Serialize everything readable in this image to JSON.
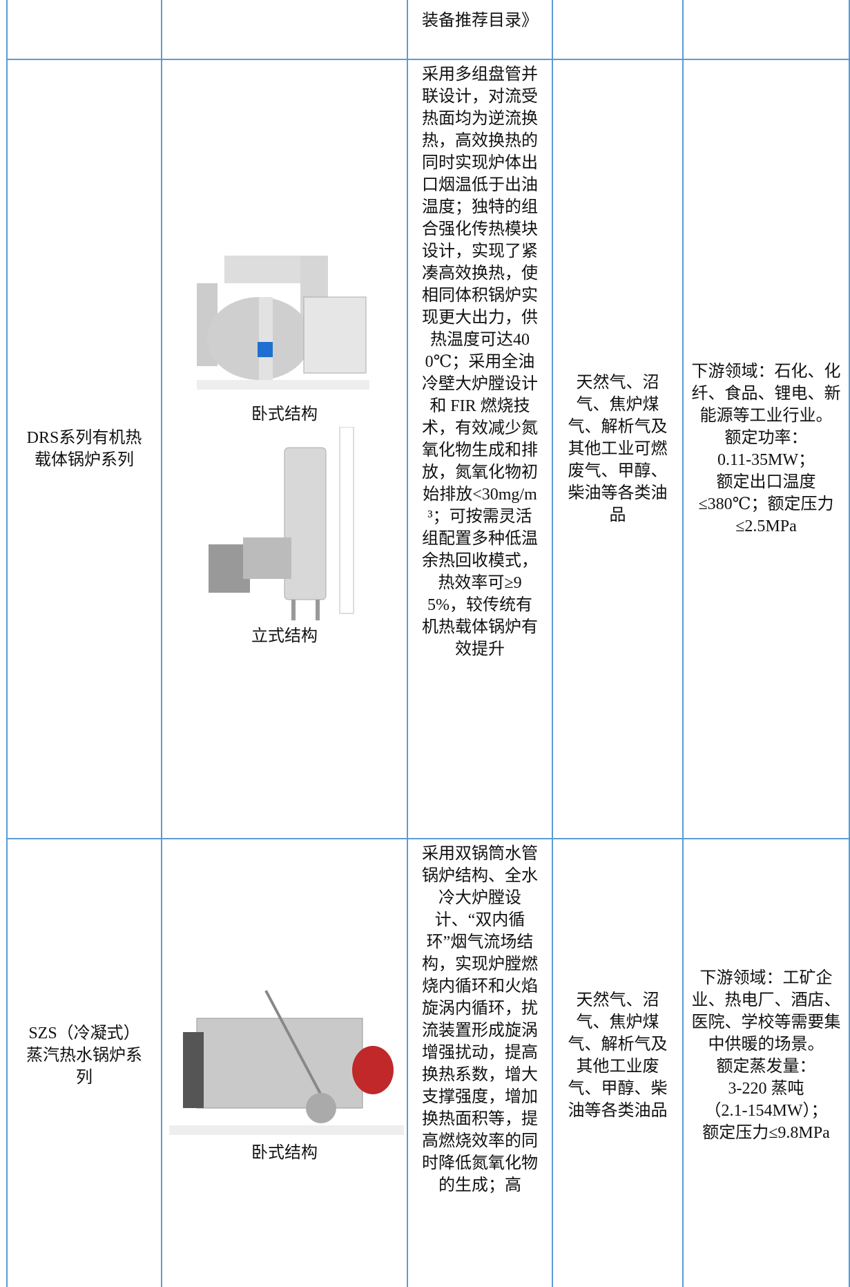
{
  "table": {
    "rows": [
      {
        "description": "装备推荐目录》"
      },
      {
        "name": "DRS系列有机热载体锅炉系列",
        "captions": [
          "卧式结构",
          "立式结构"
        ],
        "description": "采用多组盘管并联设计，对流受热面均为逆流换热，高效换热的同时实现炉体出口烟温低于出油温度；独特的组合强化传热模块设计，实现了紧凑高效换热，使相同体积锅炉实现更大出力，供热温度可达400℃；采用全油冷壁大炉膛设计和 FIR 燃烧技术，有效减少氮氧化物生成和排放，氮氧化物初始排放<30mg/m³；可按需灵活组配置多种低温余热回收模式，热效率可≥95%，较传统有机热载体锅炉有效提升",
        "fuel": "天然气、沼气、焦炉煤气、解析气及其他工业可燃废气、甲醇、柴油等各类油品",
        "application": [
          "下游领域：石化、化纤、食品、锂电、新能源等工业行业。",
          "额定功率：",
          "0.11-35MW；",
          "额定出口温度≤380℃；额定压力≤2.5MPa"
        ]
      },
      {
        "name": "SZS（冷凝式）蒸汽热水锅炉系列",
        "captions": [
          "卧式结构"
        ],
        "description": "采用双锅筒水管锅炉结构、全水冷大炉膛设计、“双内循环”烟气流场结构，实现炉膛燃烧内循环和火焰旋涡内循环，扰流装置形成旋涡增强扰动，提高换热系数，增大支撑强度，增加换热面积等，提高燃烧效率的同时降低氮氧化物的生成；高",
        "fuel": "天然气、沼气、焦炉煤气、解析气及其他工业废气、甲醇、柴油等各类油品",
        "application": [
          "下游领域：工矿企业、热电厂、酒店、医院、学校等需要集中供暖的场景。",
          "额定蒸发量：",
          "3-220 蒸吨",
          "（2.1-154MW）；",
          "额定压力≤9.8MPa"
        ]
      }
    ]
  }
}
